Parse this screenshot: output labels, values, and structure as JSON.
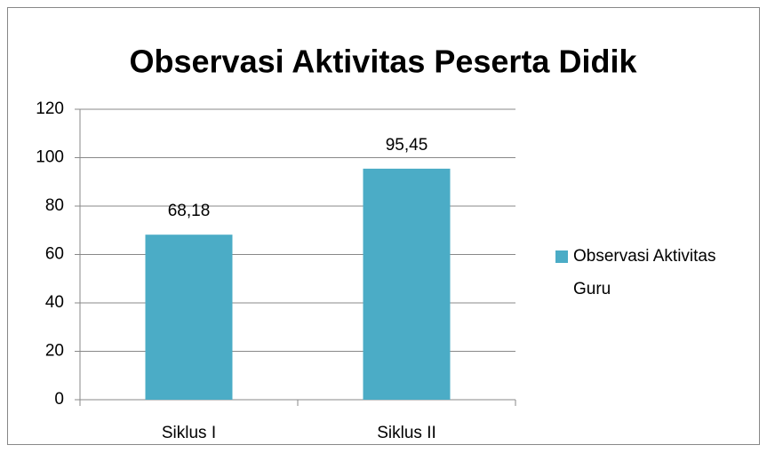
{
  "chart_data": {
    "type": "bar",
    "title": "Observasi Aktivitas Peserta Didik",
    "categories": [
      "Siklus I",
      "Siklus II"
    ],
    "series": [
      {
        "name": "Observasi Aktivitas Guru",
        "color": "#4bacc6",
        "values": [
          68.18,
          95.45
        ],
        "value_labels": [
          "68,18",
          "95,45"
        ]
      }
    ],
    "ylim": [
      0,
      120
    ],
    "yticks": [
      0,
      20,
      40,
      60,
      80,
      100,
      120
    ],
    "grid": true,
    "legend": "right"
  }
}
